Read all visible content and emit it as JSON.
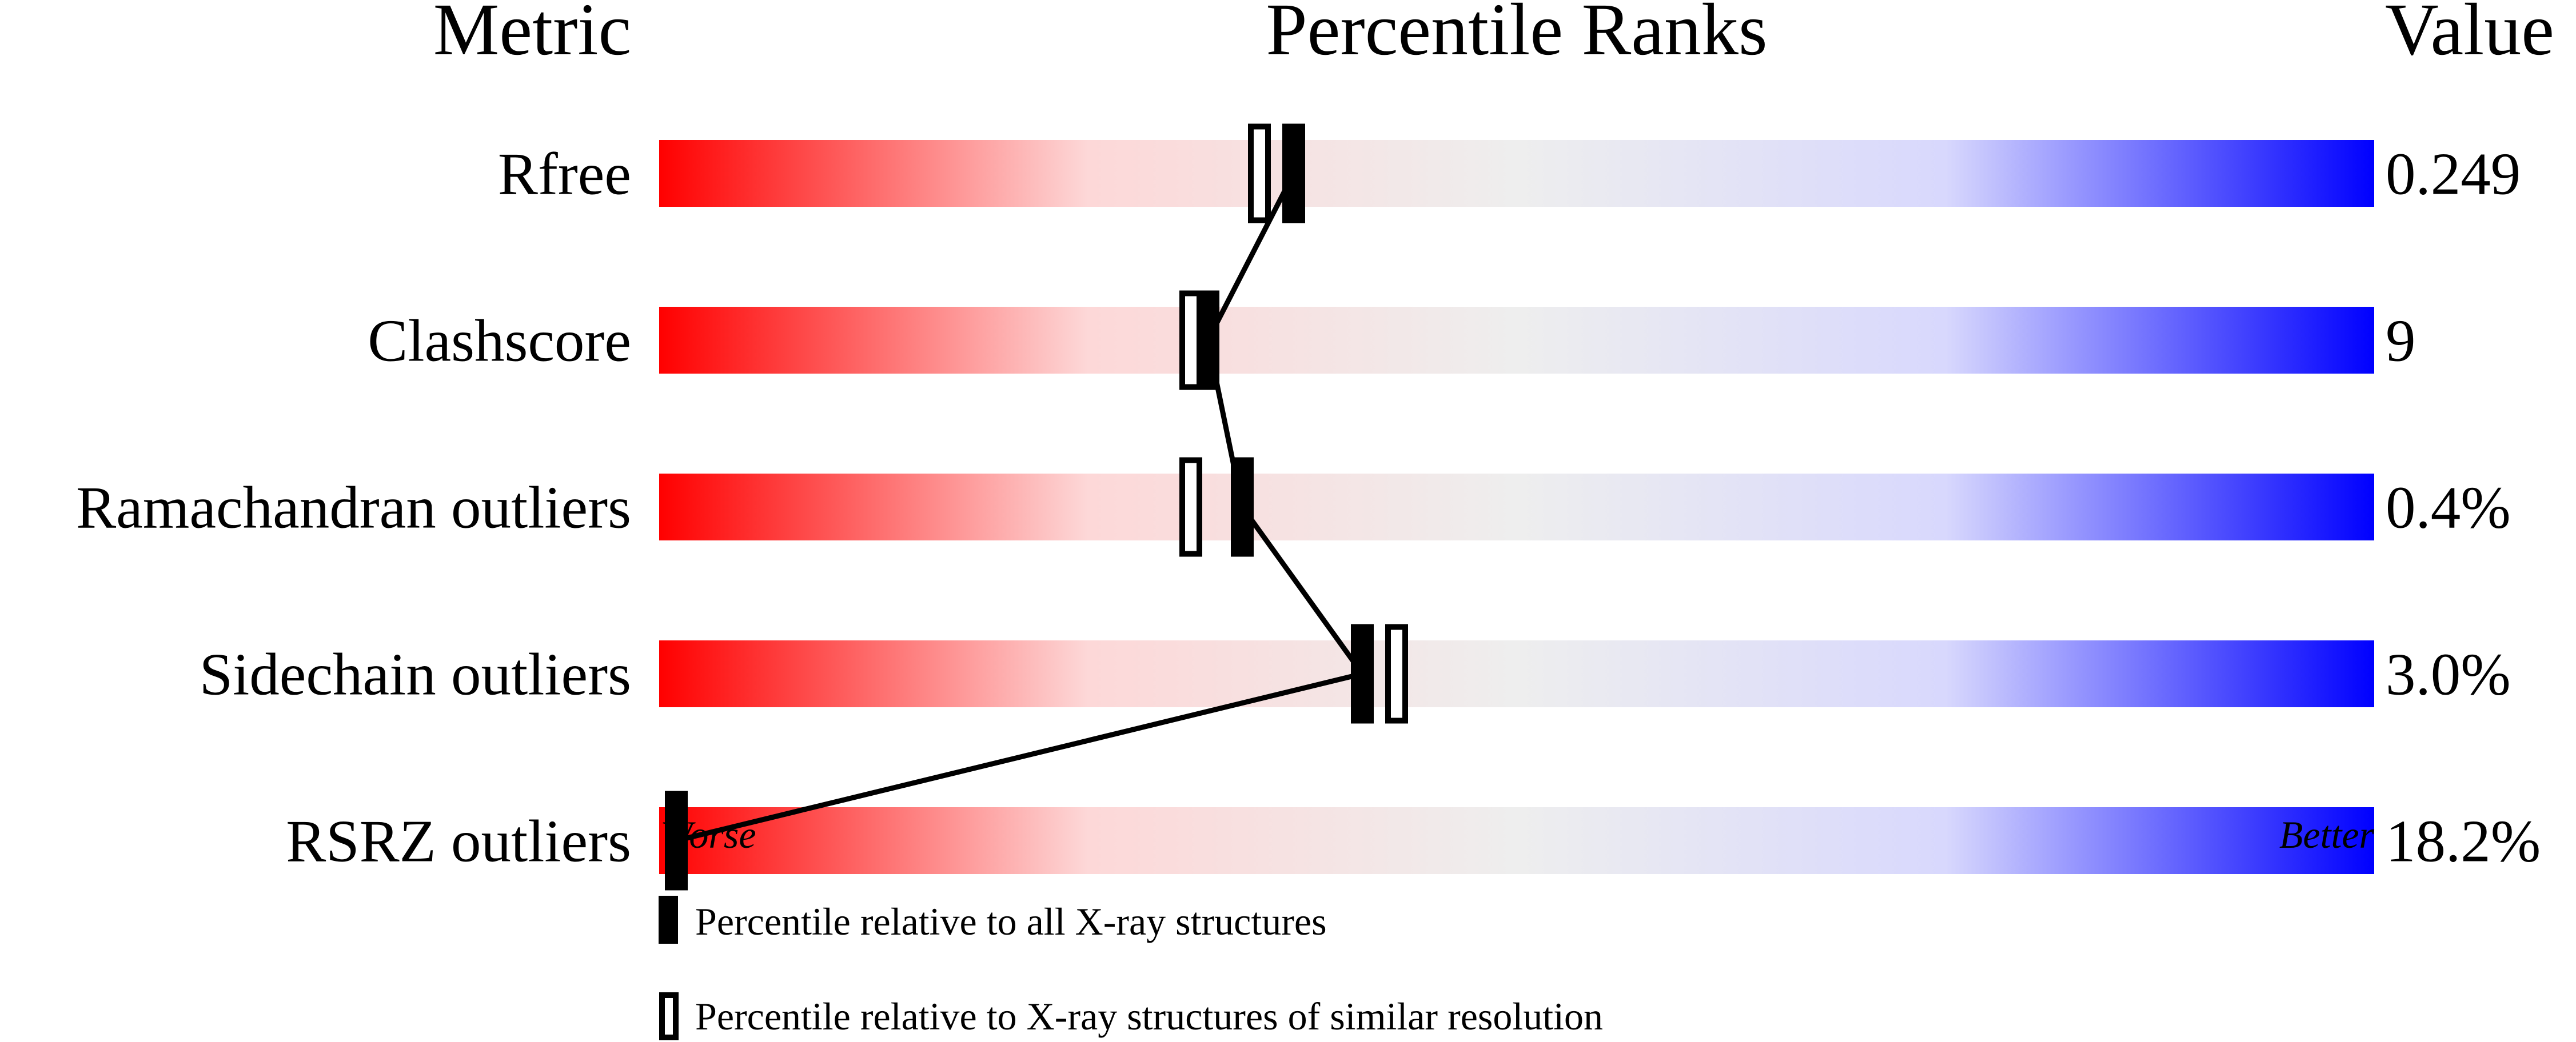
{
  "chart_data": {
    "type": "bar",
    "title": "Percentile Ranks",
    "header_metric": "Metric",
    "header_value": "Value",
    "xlim": [
      0,
      100
    ],
    "axis_left_label": "Worse",
    "axis_right_label": "Better",
    "gradient_colors": [
      "#ff0000",
      "#fdd8d8",
      "#eeeeee",
      "#d8d8fd",
      "#0000ff"
    ],
    "metrics": [
      {
        "name": "Rfree",
        "value": "0.249",
        "percentile_all": 37,
        "percentile_similar": 35
      },
      {
        "name": "Clashscore",
        "value": "9",
        "percentile_all": 32,
        "percentile_similar": 31
      },
      {
        "name": "Ramachandran outliers",
        "value": "0.4%",
        "percentile_all": 34,
        "percentile_similar": 31
      },
      {
        "name": "Sidechain outliers",
        "value": "3.0%",
        "percentile_all": 41,
        "percentile_similar": 43
      },
      {
        "name": "RSRZ outliers",
        "value": "18.2%",
        "percentile_all": 1,
        "percentile_similar": null
      }
    ],
    "legend": [
      {
        "marker": "filled",
        "label": "Percentile relative to all X-ray structures"
      },
      {
        "marker": "open",
        "label": "Percentile relative to X-ray structures of similar resolution"
      }
    ]
  }
}
